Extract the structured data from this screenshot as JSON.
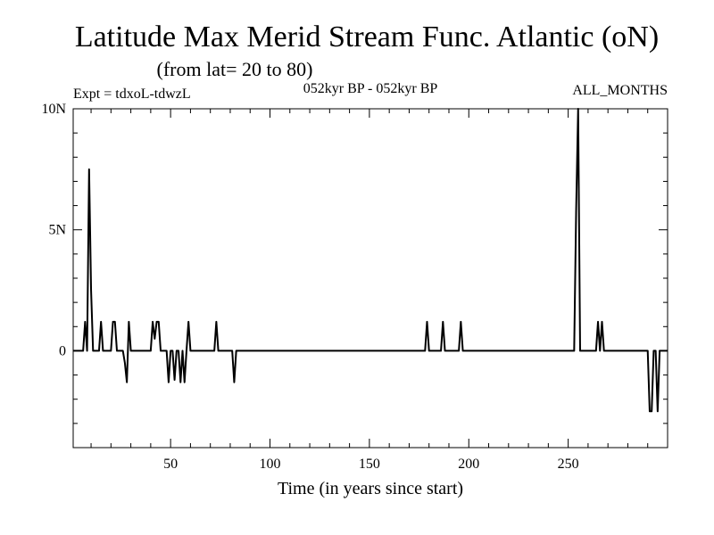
{
  "chart_data": {
    "type": "line",
    "title": "Latitude Max Merid Stream Func. Atlantic (oN)",
    "subtitle": "(from lat= 20 to 80)",
    "experiment_label": "Expt = tdxoL-tdwzL",
    "period_label": "052kyr BP - 052kyr BP",
    "season_label": "ALL_MONTHS",
    "xlabel": "Time (in years since start)",
    "ylabel": "",
    "xlim": [
      1,
      300
    ],
    "ylim": [
      -4,
      10
    ],
    "x_ticks": [
      {
        "value": 50,
        "label": "50"
      },
      {
        "value": 100,
        "label": "100"
      },
      {
        "value": 150,
        "label": "150"
      },
      {
        "value": 200,
        "label": "200"
      },
      {
        "value": 250,
        "label": "250"
      }
    ],
    "y_ticks": [
      {
        "value": 10,
        "label": "10N"
      },
      {
        "value": 5,
        "label": "5N"
      },
      {
        "value": 0,
        "label": "0"
      }
    ],
    "grid": false,
    "series": [
      {
        "color": "#000000",
        "points": [
          [
            1,
            0
          ],
          [
            6,
            0
          ],
          [
            7,
            1.2
          ],
          [
            8,
            0
          ],
          [
            9,
            7.5
          ],
          [
            10,
            2.5
          ],
          [
            11,
            0
          ],
          [
            14,
            0
          ],
          [
            15,
            1.2
          ],
          [
            16,
            0
          ],
          [
            20,
            0
          ],
          [
            21,
            1.2
          ],
          [
            22,
            1.2
          ],
          [
            23,
            0
          ],
          [
            26,
            0
          ],
          [
            27,
            -0.5
          ],
          [
            28,
            -1.3
          ],
          [
            29,
            1.2
          ],
          [
            30,
            0
          ],
          [
            40,
            0
          ],
          [
            41,
            1.2
          ],
          [
            42,
            0.5
          ],
          [
            43,
            1.2
          ],
          [
            44,
            1.2
          ],
          [
            45,
            0
          ],
          [
            48,
            0
          ],
          [
            49,
            -1.3
          ],
          [
            50,
            0
          ],
          [
            51,
            0
          ],
          [
            52,
            -1.2
          ],
          [
            53,
            0
          ],
          [
            54,
            0
          ],
          [
            55,
            -1.3
          ],
          [
            56,
            0
          ],
          [
            57,
            -1.3
          ],
          [
            58,
            0
          ],
          [
            59,
            1.2
          ],
          [
            60,
            0
          ],
          [
            72,
            0
          ],
          [
            73,
            1.2
          ],
          [
            74,
            0
          ],
          [
            81,
            0
          ],
          [
            82,
            -1.3
          ],
          [
            83,
            0
          ],
          [
            178,
            0
          ],
          [
            179,
            1.2
          ],
          [
            180,
            0
          ],
          [
            186,
            0
          ],
          [
            187,
            1.2
          ],
          [
            188,
            0
          ],
          [
            195,
            0
          ],
          [
            196,
            1.2
          ],
          [
            197,
            0
          ],
          [
            253,
            0
          ],
          [
            254,
            5.8
          ],
          [
            255,
            10
          ],
          [
            256,
            0
          ],
          [
            264,
            0
          ],
          [
            265,
            1.2
          ],
          [
            266,
            0
          ],
          [
            267,
            1.2
          ],
          [
            268,
            0
          ],
          [
            290,
            0
          ],
          [
            291,
            -2.5
          ],
          [
            292,
            -2.5
          ],
          [
            293,
            0
          ],
          [
            294,
            0
          ],
          [
            295,
            -2.5
          ],
          [
            296,
            0
          ],
          [
            298,
            0
          ],
          [
            300,
            0
          ]
        ]
      }
    ]
  }
}
